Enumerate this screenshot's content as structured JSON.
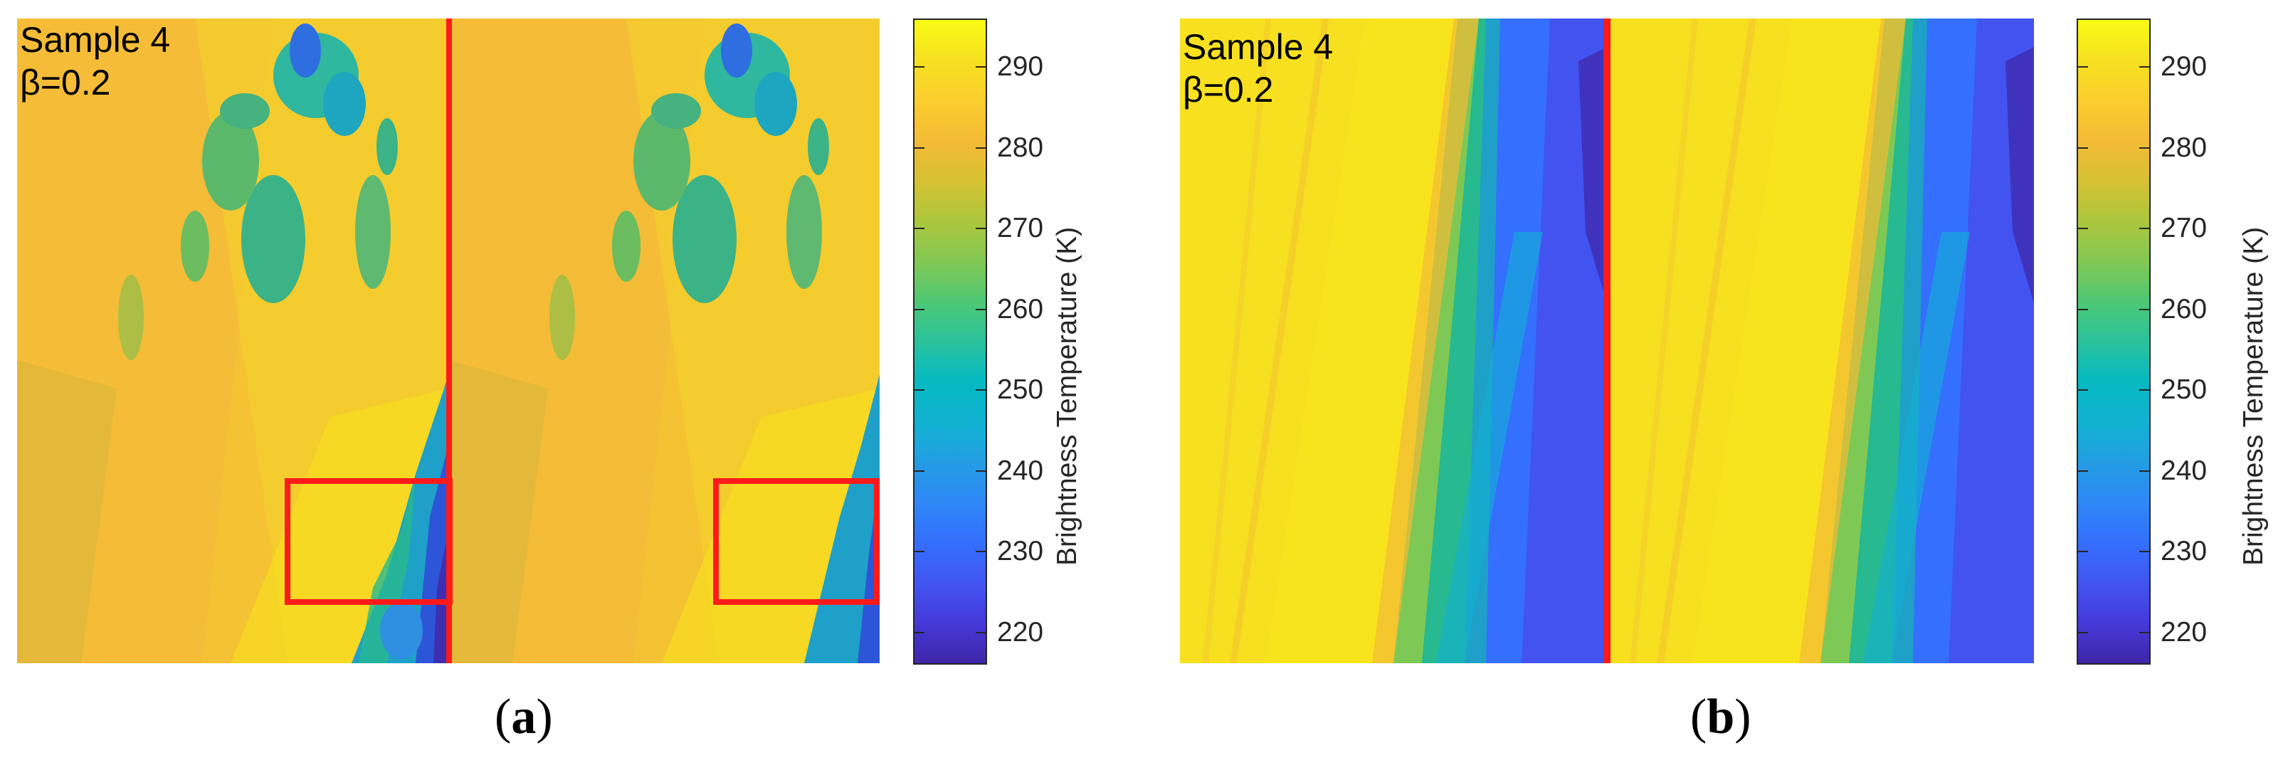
{
  "chart_data": [
    {
      "type": "heatmap",
      "panel": "(a)",
      "caption_letter": "a",
      "annotation_lines": [
        "Sample 4",
        "β=0.2"
      ],
      "colorbar": {
        "label": "Brightness Temperature (K)",
        "ticks": [
          220,
          230,
          240,
          250,
          260,
          270,
          280,
          290
        ],
        "range": [
          216,
          296
        ],
        "colormap": "parula"
      },
      "overlays": [
        "red vertical line",
        "two red rectangles"
      ],
      "overlay_color": "#ff1a1a"
    },
    {
      "type": "heatmap",
      "panel": "(b)",
      "caption_letter": "b",
      "annotation_lines": [
        "Sample 4",
        "β=0.2"
      ],
      "colorbar": {
        "label": "Brightness Temperature (K)",
        "ticks": [
          220,
          230,
          240,
          250,
          260,
          270,
          280,
          290
        ],
        "range": [
          216,
          296
        ],
        "colormap": "parula"
      },
      "overlays": [
        "red vertical line"
      ],
      "overlay_color": "#ff1a1a"
    }
  ]
}
